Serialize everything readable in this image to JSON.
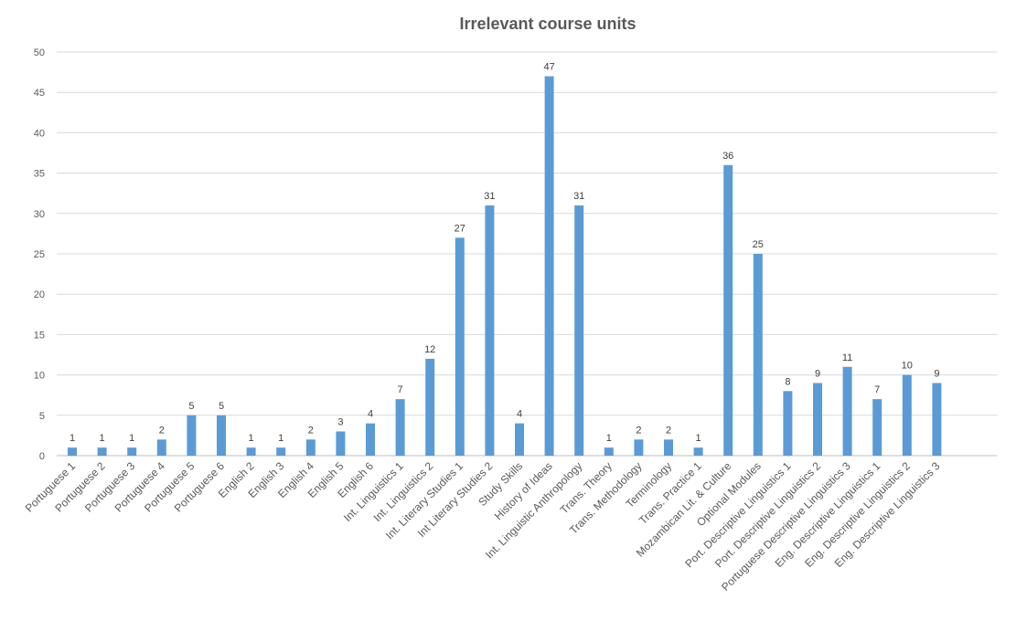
{
  "chart_data": {
    "type": "bar",
    "title": "Irrelevant course units",
    "xlabel": "",
    "ylabel": "",
    "ylim": [
      0,
      50
    ],
    "yticks": [
      0,
      5,
      10,
      15,
      20,
      25,
      30,
      35,
      40,
      45,
      50
    ],
    "grid": true,
    "legend": "none",
    "bar_color": "#5b9bd5",
    "categories": [
      "Portuguese 1",
      "Portuguese 2",
      "Portuguese 3",
      "Portuguese 4",
      "Portuguese 5",
      "Portuguese 6",
      "English 2",
      "English 3",
      "English 4",
      "English 5",
      "English 6",
      "Int. Linguistics 1",
      "Int. Linguistics 2",
      "Int. Literary Studies 1",
      "Int Literary Studies 2",
      "Study Skills",
      "History of Ideas",
      "Int. Linguistic Anthropology",
      "Trans. Theory",
      "Trans. Methodology",
      "Terminology",
      "Trans. Practice 1",
      "Mozambican Lit. & Culture",
      "Optional Modules",
      "Port. Descriptive Linguistics 1",
      "Port. Descriptive Linguistics 2",
      "Portuguese Descriptive Linguistics 3",
      "Eng. Descriptive Linguistics 1",
      "Eng. Descriptive Linguistics 2",
      "Eng. Descriptive Linguistics 3"
    ],
    "values": [
      1,
      1,
      1,
      2,
      5,
      5,
      1,
      1,
      2,
      3,
      4,
      7,
      12,
      27,
      31,
      4,
      47,
      31,
      1,
      2,
      2,
      1,
      36,
      25,
      8,
      9,
      11,
      7,
      10,
      9
    ]
  }
}
